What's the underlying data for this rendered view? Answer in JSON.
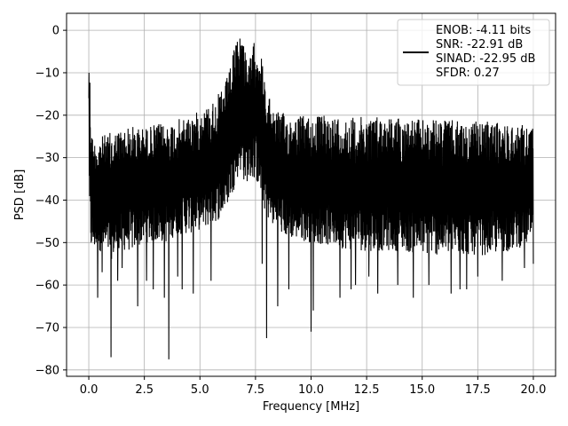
{
  "chart_data": {
    "type": "line",
    "xlabel": "Frequency [MHz]",
    "ylabel": "PSD [dB]",
    "xlim": [
      -1.0,
      21.0
    ],
    "ylim": [
      -81.5,
      4.0
    ],
    "xticks": [
      0.0,
      2.5,
      5.0,
      7.5,
      10.0,
      12.5,
      15.0,
      17.5,
      20.0
    ],
    "xtick_labels": [
      "0.0",
      "2.5",
      "5.0",
      "7.5",
      "10.0",
      "12.5",
      "15.0",
      "17.5",
      "20.0"
    ],
    "yticks": [
      0,
      -10,
      -20,
      -30,
      -40,
      -50,
      -60,
      -70,
      -80
    ],
    "ytick_labels": [
      "0",
      "−10",
      "−20",
      "−30",
      "−40",
      "−50",
      "−60",
      "−70",
      "−80"
    ],
    "grid": true,
    "legend_position": "top-right",
    "line_color": "#000000",
    "series": [
      {
        "legend_lines": [
          "ENOB: -4.11 bits",
          "SNR: -22.91 dB",
          "SINAD: -22.95 dB",
          "SFDR: 0.27"
        ],
        "upper_envelope": [
          [
            0.0,
            -12
          ],
          [
            0.05,
            -10
          ],
          [
            0.1,
            -22
          ],
          [
            0.2,
            -26
          ],
          [
            0.5,
            -25
          ],
          [
            1.0,
            -24
          ],
          [
            1.5,
            -23
          ],
          [
            2.0,
            -22.5
          ],
          [
            2.5,
            -23
          ],
          [
            3.0,
            -22
          ],
          [
            3.5,
            -22
          ],
          [
            4.0,
            -21
          ],
          [
            4.5,
            -20
          ],
          [
            5.0,
            -19
          ],
          [
            5.5,
            -17
          ],
          [
            6.0,
            -14
          ],
          [
            6.3,
            -10
          ],
          [
            6.6,
            -3
          ],
          [
            6.8,
            -0.3
          ],
          [
            7.0,
            -2
          ],
          [
            7.2,
            -8
          ],
          [
            7.4,
            -3
          ],
          [
            7.6,
            -2
          ],
          [
            7.8,
            -7
          ],
          [
            8.0,
            -15
          ],
          [
            8.5,
            -19
          ],
          [
            9.0,
            -20
          ],
          [
            10.0,
            -20
          ],
          [
            11.0,
            -20
          ],
          [
            12.0,
            -20.5
          ],
          [
            13.0,
            -20
          ],
          [
            14.0,
            -20.5
          ],
          [
            15.0,
            -21
          ],
          [
            16.0,
            -21
          ],
          [
            17.0,
            -21.5
          ],
          [
            18.0,
            -21.5
          ],
          [
            19.0,
            -22
          ],
          [
            20.0,
            -22.5
          ]
        ],
        "lower_envelope": [
          [
            0.0,
            -45
          ],
          [
            0.1,
            -52
          ],
          [
            0.5,
            -52
          ],
          [
            1.0,
            -54
          ],
          [
            1.5,
            -52
          ],
          [
            2.0,
            -52
          ],
          [
            2.5,
            -50
          ],
          [
            3.0,
            -50
          ],
          [
            3.5,
            -50
          ],
          [
            4.0,
            -48
          ],
          [
            4.5,
            -48
          ],
          [
            5.0,
            -47
          ],
          [
            5.5,
            -46
          ],
          [
            6.0,
            -44
          ],
          [
            6.5,
            -38
          ],
          [
            6.8,
            -33
          ],
          [
            7.0,
            -36
          ],
          [
            7.5,
            -35
          ],
          [
            8.0,
            -44
          ],
          [
            8.5,
            -48
          ],
          [
            9.0,
            -49
          ],
          [
            10.0,
            -50
          ],
          [
            11.0,
            -51
          ],
          [
            12.0,
            -52
          ],
          [
            13.0,
            -52
          ],
          [
            14.0,
            -52
          ],
          [
            15.0,
            -53
          ],
          [
            16.0,
            -53
          ],
          [
            17.0,
            -53
          ],
          [
            18.0,
            -53
          ],
          [
            19.0,
            -52
          ],
          [
            20.0,
            -50
          ]
        ],
        "deep_nulls": [
          [
            0.4,
            -63
          ],
          [
            0.6,
            -57
          ],
          [
            1.0,
            -77
          ],
          [
            1.3,
            -59
          ],
          [
            1.5,
            -56
          ],
          [
            2.2,
            -65
          ],
          [
            2.6,
            -59
          ],
          [
            2.9,
            -61
          ],
          [
            3.4,
            -63
          ],
          [
            3.6,
            -77.5
          ],
          [
            4.0,
            -58
          ],
          [
            4.2,
            -61
          ],
          [
            4.7,
            -62
          ],
          [
            5.5,
            -59
          ],
          [
            7.8,
            -55
          ],
          [
            8.0,
            -72.5
          ],
          [
            8.5,
            -65
          ],
          [
            9.0,
            -61
          ],
          [
            10.0,
            -71
          ],
          [
            10.1,
            -66
          ],
          [
            11.3,
            -63
          ],
          [
            11.8,
            -61
          ],
          [
            12.0,
            -60
          ],
          [
            12.6,
            -58
          ],
          [
            13.0,
            -62
          ],
          [
            13.9,
            -60
          ],
          [
            14.6,
            -63
          ],
          [
            15.3,
            -60
          ],
          [
            16.3,
            -62
          ],
          [
            16.7,
            -61
          ],
          [
            17.0,
            -61
          ],
          [
            17.5,
            -58
          ],
          [
            18.6,
            -59
          ],
          [
            19.6,
            -56
          ],
          [
            20.0,
            -55
          ]
        ]
      }
    ]
  }
}
